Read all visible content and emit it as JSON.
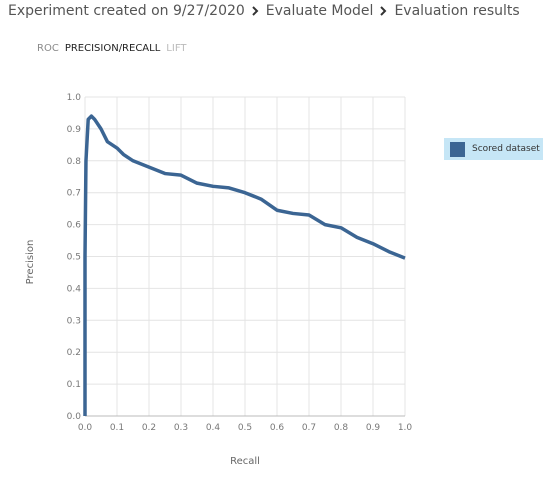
{
  "header": {
    "breadcrumb": [
      "Experiment created on 9/27/2020",
      "Evaluate Model",
      "Evaluation results"
    ]
  },
  "tabs": [
    "ROC",
    "PRECISION/RECALL",
    "LIFT"
  ],
  "chart_data": {
    "type": "line",
    "x_label": "Recall",
    "y_label": "Precision",
    "x": [
      0,
      0,
      0.003,
      0.01,
      0.02,
      0.03,
      0.05,
      0.07,
      0.1,
      0.12,
      0.15,
      0.2,
      0.25,
      0.3,
      0.35,
      0.4,
      0.45,
      0.5,
      0.55,
      0.6,
      0.65,
      0.7,
      0.75,
      0.8,
      0.85,
      0.9,
      0.95,
      1.0
    ],
    "series": [
      {
        "name": "Scored dataset",
        "color": "#3b6593",
        "values": [
          0,
          0.5,
          0.8,
          0.93,
          0.94,
          0.93,
          0.9,
          0.86,
          0.84,
          0.82,
          0.8,
          0.78,
          0.76,
          0.755,
          0.73,
          0.72,
          0.715,
          0.7,
          0.68,
          0.645,
          0.635,
          0.63,
          0.6,
          0.59,
          0.56,
          0.54,
          0.515,
          0.495
        ]
      }
    ],
    "xlim": [
      0,
      1
    ],
    "ylim": [
      0,
      1
    ],
    "xticks": [
      {
        "value": 0,
        "label": "0.0"
      },
      0.1,
      0.2,
      0.3,
      0.4,
      0.5,
      0.6,
      0.7,
      0.8,
      0.9,
      {
        "value": 1,
        "label": "1.0"
      }
    ],
    "yticks": [
      {
        "value": 0,
        "label": "0.0"
      },
      0.1,
      0.2,
      0.3,
      0.4,
      0.5,
      0.6,
      0.7,
      0.8,
      0.9,
      {
        "value": 1,
        "label": "1.0"
      }
    ],
    "grid": true
  }
}
